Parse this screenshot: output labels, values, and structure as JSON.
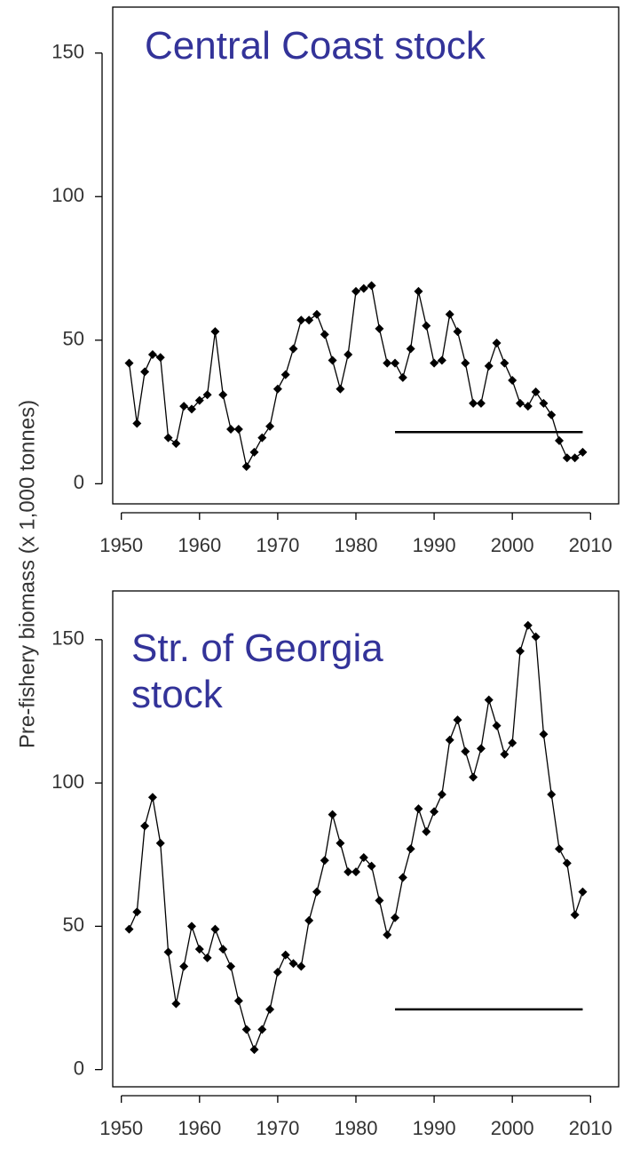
{
  "y_label": "Pre-fishery biomass (x 1,000 tonnes)",
  "chart_data": [
    {
      "type": "line",
      "title": "Central Coast stock",
      "title_color": "#333399",
      "color": "#000000",
      "x": [
        1951,
        1952,
        1953,
        1954,
        1955,
        1956,
        1957,
        1958,
        1959,
        1960,
        1961,
        1962,
        1963,
        1964,
        1965,
        1966,
        1967,
        1968,
        1969,
        1970,
        1971,
        1972,
        1973,
        1974,
        1975,
        1976,
        1977,
        1978,
        1979,
        1980,
        1981,
        1982,
        1983,
        1984,
        1985,
        1986,
        1987,
        1988,
        1989,
        1990,
        1991,
        1992,
        1993,
        1994,
        1995,
        1996,
        1997,
        1998,
        1999,
        2000,
        2001,
        2002,
        2003,
        2004,
        2005,
        2006,
        2007,
        2008,
        2009
      ],
      "values": [
        42,
        21,
        39,
        45,
        44,
        16,
        14,
        27,
        26,
        29,
        31,
        53,
        31,
        19,
        19,
        6,
        11,
        16,
        20,
        33,
        38,
        47,
        57,
        57,
        59,
        52,
        43,
        33,
        45,
        67,
        68,
        69,
        54,
        42,
        42,
        37,
        47,
        67,
        55,
        42,
        43,
        59,
        53,
        42,
        28,
        28,
        41,
        49,
        42,
        36,
        28,
        27,
        32,
        28,
        24,
        15,
        9,
        9,
        11
      ],
      "reference_line": {
        "value": 18,
        "x": [
          1985,
          2009
        ]
      },
      "xlim": [
        1948.9,
        2013.6
      ],
      "ylim": [
        -7,
        166
      ],
      "xticks": [
        1950,
        1960,
        1970,
        1980,
        1990,
        2000,
        2010
      ],
      "yticks": [
        0,
        50,
        100,
        150
      ]
    },
    {
      "type": "line",
      "title": "Str. of Georgia stock",
      "title_color": "#333399",
      "color": "#000000",
      "x": [
        1951,
        1952,
        1953,
        1954,
        1955,
        1956,
        1957,
        1958,
        1959,
        1960,
        1961,
        1962,
        1963,
        1964,
        1965,
        1966,
        1967,
        1968,
        1969,
        1970,
        1971,
        1972,
        1973,
        1974,
        1975,
        1976,
        1977,
        1978,
        1979,
        1980,
        1981,
        1982,
        1983,
        1984,
        1985,
        1986,
        1987,
        1988,
        1989,
        1990,
        1991,
        1992,
        1993,
        1994,
        1995,
        1996,
        1997,
        1998,
        1999,
        2000,
        2001,
        2002,
        2003,
        2004,
        2005,
        2006,
        2007,
        2008,
        2009
      ],
      "values": [
        49,
        55,
        85,
        95,
        79,
        41,
        23,
        36,
        50,
        42,
        39,
        49,
        42,
        36,
        24,
        14,
        7,
        14,
        21,
        34,
        40,
        37,
        36,
        52,
        62,
        73,
        89,
        79,
        69,
        69,
        74,
        71,
        59,
        47,
        53,
        67,
        77,
        91,
        83,
        90,
        96,
        115,
        122,
        111,
        102,
        112,
        129,
        120,
        110,
        114,
        146,
        155,
        151,
        117,
        96,
        77,
        72,
        54,
        62
      ],
      "reference_line": {
        "value": 21,
        "x": [
          1985,
          2009
        ]
      },
      "xlim": [
        1948.9,
        2013.6
      ],
      "ylim": [
        -6,
        167
      ],
      "xticks": [
        1950,
        1960,
        1970,
        1980,
        1990,
        2000,
        2010
      ],
      "yticks": [
        0,
        50,
        100,
        150
      ]
    }
  ]
}
